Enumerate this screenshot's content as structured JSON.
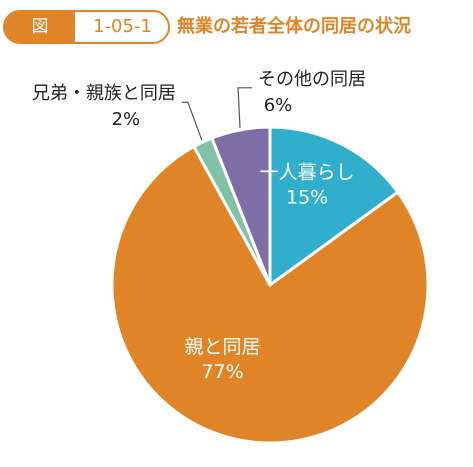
{
  "header": {
    "figure_label": "図",
    "figure_number": "1-05-1",
    "title": "無業の若者全体の同居の状況"
  },
  "colors": {
    "accent": "#e08527",
    "slice_living_alone": "#31aecb",
    "slice_parents": "#e08527",
    "slice_siblings": "#80c2a6",
    "slice_other": "#7d6fa5",
    "leader_line": "#555555"
  },
  "chart_data": {
    "type": "pie",
    "title": "無業の若者全体の同居の状況",
    "slices": [
      {
        "name": "一人暮らし",
        "value": 15,
        "label": "15%",
        "color": "#31aecb"
      },
      {
        "name": "親と同居",
        "value": 77,
        "label": "77%",
        "color": "#e08527"
      },
      {
        "name": "兄弟・親族と同居",
        "value": 2,
        "label": "2%",
        "color": "#80c2a6"
      },
      {
        "name": "その他の同居",
        "value": 6,
        "label": "6%",
        "color": "#7d6fa5"
      }
    ]
  }
}
